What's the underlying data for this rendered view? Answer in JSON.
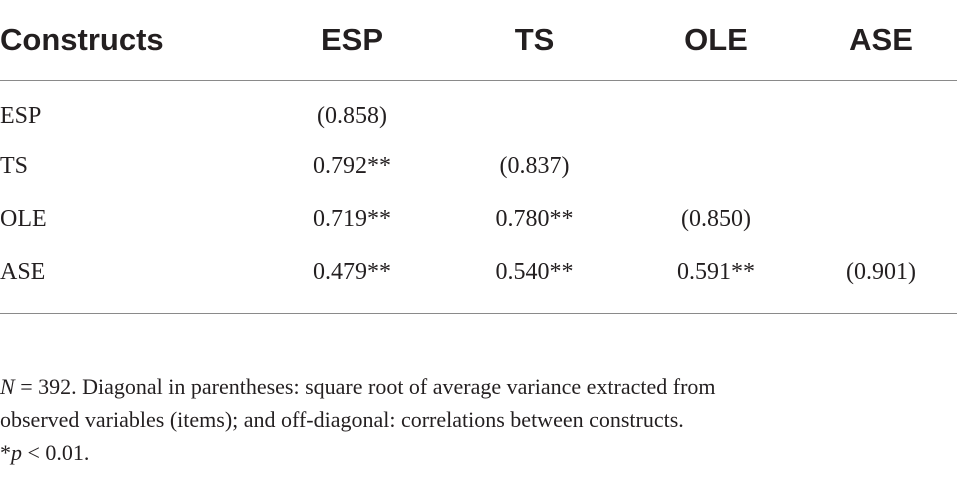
{
  "table": {
    "headers": [
      "Constructs",
      "ESP",
      "TS",
      "OLE",
      "ASE"
    ],
    "rows": [
      {
        "label": "ESP",
        "cells": [
          "(0.858)",
          "",
          "",
          ""
        ]
      },
      {
        "label": "TS",
        "cells": [
          "0.792**",
          "(0.837)",
          "",
          ""
        ]
      },
      {
        "label": "OLE",
        "cells": [
          "0.719**",
          "0.780**",
          "(0.850)",
          ""
        ]
      },
      {
        "label": "ASE",
        "cells": [
          "0.479**",
          "0.540**",
          "0.591**",
          "(0.901)"
        ]
      }
    ]
  },
  "footnote": {
    "n_symbol": "N",
    "n_rest": " = 392. Diagonal in parentheses: square root of average variance extracted from",
    "line2": "observed variables (items); and off-diagonal: correlations between constructs.",
    "sig_star": "*",
    "sig_p": "p",
    "sig_rest": " < 0.01."
  }
}
